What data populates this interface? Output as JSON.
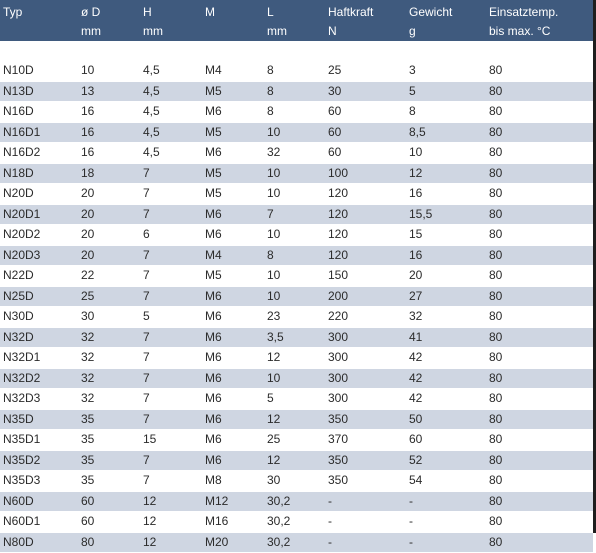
{
  "columns": [
    {
      "line1": "Typ",
      "line2": ""
    },
    {
      "line1": "ø D",
      "line2": "mm"
    },
    {
      "line1": "H",
      "line2": "mm"
    },
    {
      "line1": "M",
      "line2": ""
    },
    {
      "line1": "L",
      "line2": "mm"
    },
    {
      "line1": "Haftkraft",
      "line2": "N"
    },
    {
      "line1": "Gewicht",
      "line2": "g"
    },
    {
      "line1": "Einsatztemp.",
      "line2": "bis max. °C"
    }
  ],
  "rows": [
    [
      "N10D",
      "10",
      "4,5",
      "M4",
      "8",
      "25",
      "3",
      "80"
    ],
    [
      "N13D",
      "13",
      "4,5",
      "M5",
      "8",
      "30",
      "5",
      "80"
    ],
    [
      "N16D",
      "16",
      "4,5",
      "M6",
      "8",
      "60",
      "8",
      "80"
    ],
    [
      "N16D1",
      "16",
      "4,5",
      "M5",
      "10",
      "60",
      "8,5",
      "80"
    ],
    [
      "N16D2",
      "16",
      "4,5",
      "M6",
      "32",
      "60",
      "10",
      "80"
    ],
    [
      "N18D",
      "18",
      "7",
      "M5",
      "10",
      "100",
      "12",
      "80"
    ],
    [
      "N20D",
      "20",
      "7",
      "M5",
      "10",
      "120",
      "16",
      "80"
    ],
    [
      "N20D1",
      "20",
      "7",
      "M6",
      "7",
      "120",
      "15,5",
      "80"
    ],
    [
      "N20D2",
      "20",
      "6",
      "M6",
      "10",
      "120",
      "15",
      "80"
    ],
    [
      "N20D3",
      "20",
      "7",
      "M4",
      "8",
      "120",
      "16",
      "80"
    ],
    [
      "N22D",
      "22",
      "7",
      "M5",
      "10",
      "150",
      "20",
      "80"
    ],
    [
      "N25D",
      "25",
      "7",
      "M6",
      "10",
      "200",
      "27",
      "80"
    ],
    [
      "N30D",
      "30",
      "5",
      "M6",
      "23",
      "220",
      "32",
      "80"
    ],
    [
      "N32D",
      "32",
      "7",
      "M6",
      "3,5",
      "300",
      "41",
      "80"
    ],
    [
      "N32D1",
      "32",
      "7",
      "M6",
      "12",
      "300",
      "42",
      "80"
    ],
    [
      "N32D2",
      "32",
      "7",
      "M6",
      "10",
      "300",
      "42",
      "80"
    ],
    [
      "N32D3",
      "32",
      "7",
      "M6",
      "5",
      "300",
      "42",
      "80"
    ],
    [
      "N35D",
      "35",
      "7",
      "M6",
      "12",
      "350",
      "50",
      "80"
    ],
    [
      "N35D1",
      "35",
      "15",
      "M6",
      "25",
      "370",
      "60",
      "80"
    ],
    [
      "N35D2",
      "35",
      "7",
      "M6",
      "12",
      "350",
      "52",
      "80"
    ],
    [
      "N35D3",
      "35",
      "7",
      "M8",
      "30",
      "350",
      "54",
      "80"
    ],
    [
      "N60D",
      "60",
      "12",
      "M12",
      "30,2",
      "-",
      "-",
      "80"
    ],
    [
      "N60D1",
      "60",
      "12",
      "M16",
      "30,2",
      "-",
      "-",
      "80"
    ],
    [
      "N80D",
      "80",
      "12",
      "M20",
      "30,2",
      "-",
      "-",
      "80"
    ]
  ],
  "colors": {
    "header_bg": "#3f5a7e",
    "stripe_bg": "#cfd6e2",
    "text": "#2b2b2b"
  }
}
